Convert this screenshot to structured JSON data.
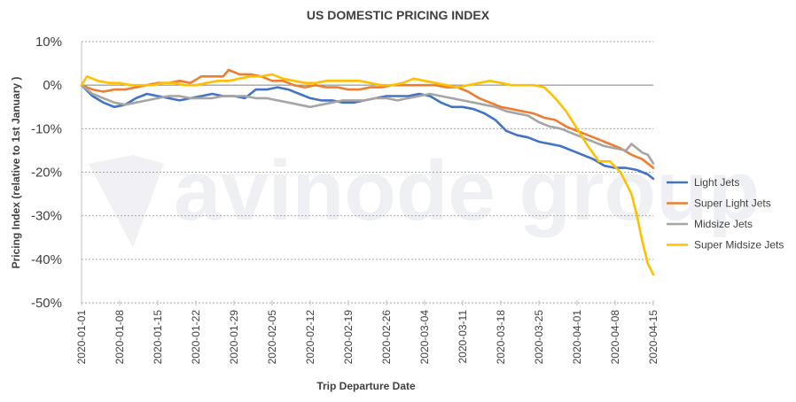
{
  "chart_data": {
    "type": "line",
    "title": "US DOMESTIC PRICING INDEX",
    "xlabel": "Trip Departure Date",
    "ylabel": "Pricing Index (relative to 1st January )",
    "watermark": "avinode group",
    "ylim": [
      -50,
      10
    ],
    "yticks": [
      10,
      0,
      -10,
      -20,
      -30,
      -40,
      -50
    ],
    "ytick_labels": [
      "10%",
      "0%",
      "-10%",
      "-20%",
      "-30%",
      "-40%",
      "-50%"
    ],
    "x_start": "2020-01-01",
    "x_end": "2020-04-15",
    "xtick_labels": [
      "2020-01-01",
      "2020-01-08",
      "2020-01-15",
      "2020-01-22",
      "2020-01-29",
      "2020-02-05",
      "2020-02-12",
      "2020-02-19",
      "2020-02-26",
      "2020-03-04",
      "2020-03-11",
      "2020-03-18",
      "2020-03-25",
      "2020-04-01",
      "2020-04-08",
      "2020-04-15"
    ],
    "grid": true,
    "legend_position": "right",
    "series": [
      {
        "name": "Light Jets",
        "color": "#4472c4",
        "points": [
          [
            "2020-01-01",
            0
          ],
          [
            "2020-01-03",
            -2.5
          ],
          [
            "2020-01-05",
            -4
          ],
          [
            "2020-01-07",
            -5
          ],
          [
            "2020-01-09",
            -4.5
          ],
          [
            "2020-01-11",
            -3
          ],
          [
            "2020-01-13",
            -2
          ],
          [
            "2020-01-15",
            -2.5
          ],
          [
            "2020-01-17",
            -3
          ],
          [
            "2020-01-19",
            -3.5
          ],
          [
            "2020-01-21",
            -3
          ],
          [
            "2020-01-23",
            -2.5
          ],
          [
            "2020-01-25",
            -2
          ],
          [
            "2020-01-27",
            -2.5
          ],
          [
            "2020-01-29",
            -2.5
          ],
          [
            "2020-01-31",
            -3
          ],
          [
            "2020-02-02",
            -1
          ],
          [
            "2020-02-04",
            -1
          ],
          [
            "2020-02-06",
            -0.5
          ],
          [
            "2020-02-08",
            -1
          ],
          [
            "2020-02-10",
            -2
          ],
          [
            "2020-02-12",
            -3
          ],
          [
            "2020-02-14",
            -3.5
          ],
          [
            "2020-02-16",
            -3.5
          ],
          [
            "2020-02-18",
            -4
          ],
          [
            "2020-02-20",
            -4
          ],
          [
            "2020-02-22",
            -3.5
          ],
          [
            "2020-02-24",
            -3
          ],
          [
            "2020-02-26",
            -2.5
          ],
          [
            "2020-02-28",
            -2.5
          ],
          [
            "2020-03-01",
            -2.5
          ],
          [
            "2020-03-03",
            -2
          ],
          [
            "2020-03-05",
            -2.5
          ],
          [
            "2020-03-07",
            -4
          ],
          [
            "2020-03-09",
            -5
          ],
          [
            "2020-03-11",
            -5
          ],
          [
            "2020-03-13",
            -5.5
          ],
          [
            "2020-03-15",
            -6.5
          ],
          [
            "2020-03-17",
            -8
          ],
          [
            "2020-03-19",
            -10.5
          ],
          [
            "2020-03-21",
            -11.5
          ],
          [
            "2020-03-23",
            -12
          ],
          [
            "2020-03-25",
            -13
          ],
          [
            "2020-03-27",
            -13.5
          ],
          [
            "2020-03-29",
            -14
          ],
          [
            "2020-03-31",
            -15
          ],
          [
            "2020-04-02",
            -16
          ],
          [
            "2020-04-04",
            -17
          ],
          [
            "2020-04-06",
            -18.5
          ],
          [
            "2020-04-08",
            -19
          ],
          [
            "2020-04-10",
            -19
          ],
          [
            "2020-04-12",
            -19.5
          ],
          [
            "2020-04-14",
            -20.5
          ],
          [
            "2020-04-15",
            -21.5
          ]
        ]
      },
      {
        "name": "Super Light Jets",
        "color": "#ed7d31",
        "points": [
          [
            "2020-01-01",
            0
          ],
          [
            "2020-01-03",
            -1
          ],
          [
            "2020-01-05",
            -1.5
          ],
          [
            "2020-01-07",
            -1
          ],
          [
            "2020-01-09",
            -1
          ],
          [
            "2020-01-11",
            -0.5
          ],
          [
            "2020-01-13",
            0
          ],
          [
            "2020-01-15",
            0.5
          ],
          [
            "2020-01-17",
            0.5
          ],
          [
            "2020-01-19",
            1
          ],
          [
            "2020-01-21",
            0.5
          ],
          [
            "2020-01-23",
            2
          ],
          [
            "2020-01-25",
            2
          ],
          [
            "2020-01-27",
            2
          ],
          [
            "2020-01-28",
            3.5
          ],
          [
            "2020-01-30",
            2.5
          ],
          [
            "2020-02-01",
            2.5
          ],
          [
            "2020-02-03",
            2
          ],
          [
            "2020-02-05",
            1
          ],
          [
            "2020-02-07",
            1
          ],
          [
            "2020-02-09",
            0
          ],
          [
            "2020-02-11",
            -0.5
          ],
          [
            "2020-02-13",
            0
          ],
          [
            "2020-02-15",
            -0.5
          ],
          [
            "2020-02-17",
            -0.5
          ],
          [
            "2020-02-19",
            -1
          ],
          [
            "2020-02-21",
            -1
          ],
          [
            "2020-02-23",
            -0.5
          ],
          [
            "2020-02-25",
            -0.5
          ],
          [
            "2020-02-27",
            0
          ],
          [
            "2020-02-29",
            0
          ],
          [
            "2020-03-02",
            0
          ],
          [
            "2020-03-04",
            0
          ],
          [
            "2020-03-06",
            0
          ],
          [
            "2020-03-08",
            -0.5
          ],
          [
            "2020-03-10",
            -0.5
          ],
          [
            "2020-03-12",
            -1.5
          ],
          [
            "2020-03-14",
            -3
          ],
          [
            "2020-03-16",
            -4
          ],
          [
            "2020-03-18",
            -5
          ],
          [
            "2020-03-20",
            -5.5
          ],
          [
            "2020-03-22",
            -6
          ],
          [
            "2020-03-24",
            -6.5
          ],
          [
            "2020-03-26",
            -7.5
          ],
          [
            "2020-03-28",
            -8
          ],
          [
            "2020-03-30",
            -9.5
          ],
          [
            "2020-04-01",
            -10.5
          ],
          [
            "2020-04-03",
            -11.5
          ],
          [
            "2020-04-05",
            -12.5
          ],
          [
            "2020-04-07",
            -13.5
          ],
          [
            "2020-04-09",
            -14.5
          ],
          [
            "2020-04-11",
            -16
          ],
          [
            "2020-04-13",
            -17
          ],
          [
            "2020-04-15",
            -19
          ]
        ]
      },
      {
        "name": "Midsize Jets",
        "color": "#a5a5a5",
        "points": [
          [
            "2020-01-01",
            0
          ],
          [
            "2020-01-03",
            -2
          ],
          [
            "2020-01-05",
            -3
          ],
          [
            "2020-01-07",
            -4
          ],
          [
            "2020-01-09",
            -4.5
          ],
          [
            "2020-01-11",
            -4
          ],
          [
            "2020-01-13",
            -3.5
          ],
          [
            "2020-01-15",
            -3
          ],
          [
            "2020-01-17",
            -2.5
          ],
          [
            "2020-01-19",
            -2.5
          ],
          [
            "2020-01-21",
            -3
          ],
          [
            "2020-01-23",
            -3
          ],
          [
            "2020-01-25",
            -3
          ],
          [
            "2020-01-27",
            -2.5
          ],
          [
            "2020-01-29",
            -2.5
          ],
          [
            "2020-01-31",
            -2.5
          ],
          [
            "2020-02-02",
            -3
          ],
          [
            "2020-02-04",
            -3
          ],
          [
            "2020-02-06",
            -3.5
          ],
          [
            "2020-02-08",
            -4
          ],
          [
            "2020-02-10",
            -4.5
          ],
          [
            "2020-02-12",
            -5
          ],
          [
            "2020-02-14",
            -4.5
          ],
          [
            "2020-02-16",
            -4
          ],
          [
            "2020-02-18",
            -3.5
          ],
          [
            "2020-02-20",
            -3.5
          ],
          [
            "2020-02-22",
            -3.5
          ],
          [
            "2020-02-24",
            -3
          ],
          [
            "2020-02-26",
            -3
          ],
          [
            "2020-02-28",
            -3.5
          ],
          [
            "2020-03-01",
            -3
          ],
          [
            "2020-03-03",
            -2.5
          ],
          [
            "2020-03-05",
            -2
          ],
          [
            "2020-03-07",
            -2.5
          ],
          [
            "2020-03-09",
            -3
          ],
          [
            "2020-03-11",
            -3.5
          ],
          [
            "2020-03-13",
            -4
          ],
          [
            "2020-03-15",
            -4.5
          ],
          [
            "2020-03-17",
            -5
          ],
          [
            "2020-03-19",
            -6
          ],
          [
            "2020-03-21",
            -6.5
          ],
          [
            "2020-03-23",
            -7
          ],
          [
            "2020-03-25",
            -8.5
          ],
          [
            "2020-03-27",
            -9.5
          ],
          [
            "2020-03-29",
            -10
          ],
          [
            "2020-03-31",
            -11
          ],
          [
            "2020-04-02",
            -12
          ],
          [
            "2020-04-04",
            -13
          ],
          [
            "2020-04-06",
            -14
          ],
          [
            "2020-04-08",
            -14.5
          ],
          [
            "2020-04-10",
            -15
          ],
          [
            "2020-04-11",
            -13.5
          ],
          [
            "2020-04-13",
            -15.5
          ],
          [
            "2020-04-14",
            -16
          ],
          [
            "2020-04-15",
            -18
          ]
        ]
      },
      {
        "name": "Super Midsize Jets",
        "color": "#ffc000",
        "points": [
          [
            "2020-01-01",
            0
          ],
          [
            "2020-01-02",
            2
          ],
          [
            "2020-01-04",
            1
          ],
          [
            "2020-01-06",
            0.5
          ],
          [
            "2020-01-08",
            0.5
          ],
          [
            "2020-01-10",
            0
          ],
          [
            "2020-01-12",
            0
          ],
          [
            "2020-01-14",
            0
          ],
          [
            "2020-01-16",
            0.5
          ],
          [
            "2020-01-18",
            0.5
          ],
          [
            "2020-01-20",
            0
          ],
          [
            "2020-01-22",
            0
          ],
          [
            "2020-01-24",
            0.5
          ],
          [
            "2020-01-26",
            1
          ],
          [
            "2020-01-28",
            1
          ],
          [
            "2020-01-30",
            1.5
          ],
          [
            "2020-02-01",
            2
          ],
          [
            "2020-02-03",
            2
          ],
          [
            "2020-02-05",
            2.5
          ],
          [
            "2020-02-07",
            1.5
          ],
          [
            "2020-02-09",
            1
          ],
          [
            "2020-02-11",
            0.5
          ],
          [
            "2020-02-13",
            0.5
          ],
          [
            "2020-02-15",
            1
          ],
          [
            "2020-02-17",
            1
          ],
          [
            "2020-02-19",
            1
          ],
          [
            "2020-02-21",
            1
          ],
          [
            "2020-02-23",
            0.5
          ],
          [
            "2020-02-25",
            0
          ],
          [
            "2020-02-27",
            0
          ],
          [
            "2020-02-29",
            0.5
          ],
          [
            "2020-03-02",
            1.5
          ],
          [
            "2020-03-04",
            1
          ],
          [
            "2020-03-06",
            0.5
          ],
          [
            "2020-03-08",
            0
          ],
          [
            "2020-03-10",
            -0.5
          ],
          [
            "2020-03-12",
            0
          ],
          [
            "2020-03-14",
            0.5
          ],
          [
            "2020-03-16",
            1
          ],
          [
            "2020-03-18",
            0.5
          ],
          [
            "2020-03-20",
            0
          ],
          [
            "2020-03-22",
            0
          ],
          [
            "2020-03-24",
            0
          ],
          [
            "2020-03-26",
            -0.5
          ],
          [
            "2020-03-28",
            -3
          ],
          [
            "2020-03-30",
            -6
          ],
          [
            "2020-04-01",
            -10
          ],
          [
            "2020-04-03",
            -14
          ],
          [
            "2020-04-05",
            -17.5
          ],
          [
            "2020-04-07",
            -17.5
          ],
          [
            "2020-04-09",
            -20
          ],
          [
            "2020-04-11",
            -25
          ],
          [
            "2020-04-12",
            -30
          ],
          [
            "2020-04-13",
            -36
          ],
          [
            "2020-04-14",
            -41
          ],
          [
            "2020-04-15",
            -43.5
          ]
        ]
      }
    ]
  }
}
